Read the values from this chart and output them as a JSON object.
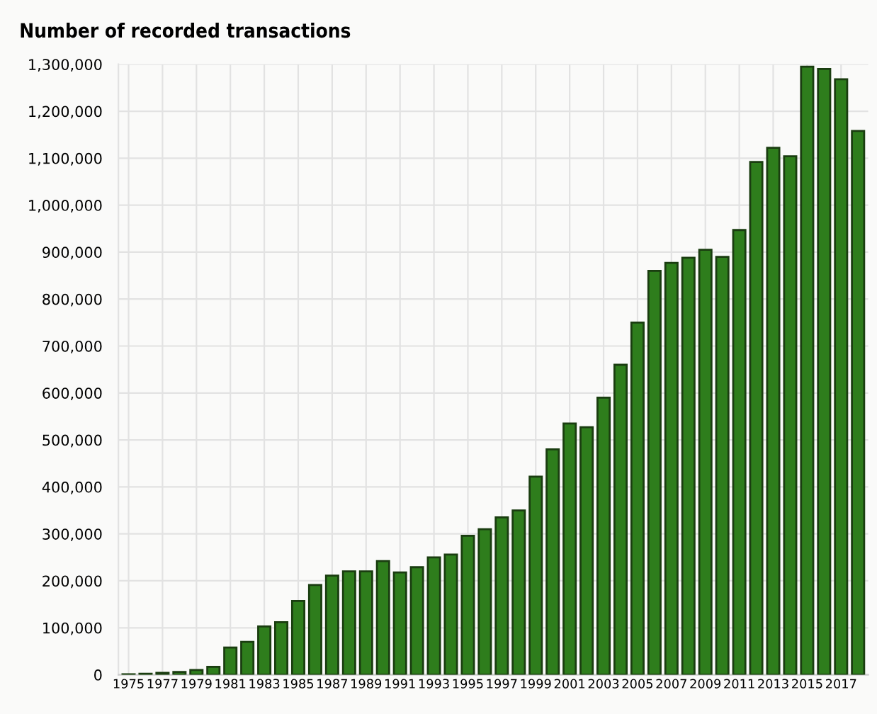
{
  "chart_data": {
    "type": "bar",
    "title": "Number of recorded transactions",
    "categories": [
      "1975",
      null,
      "1977",
      null,
      "1979",
      null,
      "1981",
      null,
      "1983",
      null,
      "1985",
      null,
      "1987",
      null,
      "1989",
      null,
      "1991",
      null,
      "1993",
      null,
      "1995",
      null,
      "1997",
      null,
      "1999",
      null,
      "2001",
      null,
      "2003",
      null,
      "2005",
      null,
      "2007",
      null,
      "2009",
      null,
      "2011",
      null,
      "2013",
      null,
      "2015",
      null,
      "2017",
      null
    ],
    "values": [
      1000,
      2000,
      4000,
      6000,
      10000,
      17000,
      58000,
      70000,
      103000,
      112000,
      157000,
      191000,
      211000,
      220000,
      220000,
      242000,
      218000,
      229000,
      250000,
      256000,
      296000,
      310000,
      335000,
      350000,
      422000,
      480000,
      535000,
      527000,
      590000,
      660000,
      750000,
      860000,
      877000,
      888000,
      905000,
      890000,
      947000,
      1092000,
      1122000,
      1104000,
      1295000,
      1290000,
      1268000,
      1158000
    ],
    "color": "#2e7d1c",
    "ylim": [
      0,
      1300000
    ],
    "yticks": [
      {
        "value": 0,
        "label": "0"
      },
      {
        "value": 100000,
        "label": "100,000"
      },
      {
        "value": 200000,
        "label": "200,000"
      },
      {
        "value": 300000,
        "label": "300,000"
      },
      {
        "value": 400000,
        "label": "400,000"
      },
      {
        "value": 500000,
        "label": "500,000"
      },
      {
        "value": 600000,
        "label": "600,000"
      },
      {
        "value": 700000,
        "label": "700,000"
      },
      {
        "value": 800000,
        "label": "800,000"
      },
      {
        "value": 900000,
        "label": "900,000"
      },
      {
        "value": 1000000,
        "label": "1,000,000"
      },
      {
        "value": 1100000,
        "label": "1,100,000"
      },
      {
        "value": 1200000,
        "label": "1,200,000"
      },
      {
        "value": 1300000,
        "label": "1,300,000"
      }
    ],
    "grid": true
  }
}
